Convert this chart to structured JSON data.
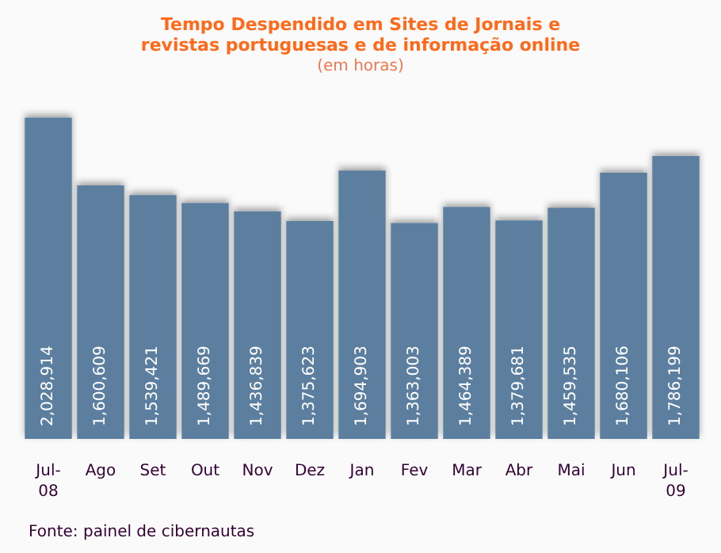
{
  "chart_data": {
    "type": "bar",
    "title": "Tempo Despendido em Sites de Jornais e\nrevistas portuguesas e de informação online",
    "subtitle": "(em horas)",
    "categories": [
      "Jul-\n08",
      "Ago",
      "Set",
      "Out",
      "Nov",
      "Dez",
      "Jan",
      "Fev",
      "Mar",
      "Abr",
      "Mai",
      "Jun",
      "Jul-\n09"
    ],
    "values": [
      2028914,
      1600609,
      1539421,
      1489669,
      1436839,
      1375623,
      1694903,
      1363003,
      1464389,
      1379681,
      1459535,
      1680106,
      1786199
    ],
    "value_labels": [
      "2,028,914",
      "1,600,609",
      "1,539,421",
      "1,489,669",
      "1,436,839",
      "1,375,623",
      "1,694,903",
      "1,363,003",
      "1,464,389",
      "1,379,681",
      "1,459,535",
      "1,680,106",
      "1,786,199"
    ],
    "color": "#5b7fa0",
    "grid": false,
    "annotations": [
      "Fonte: painel de cibernautas"
    ]
  }
}
